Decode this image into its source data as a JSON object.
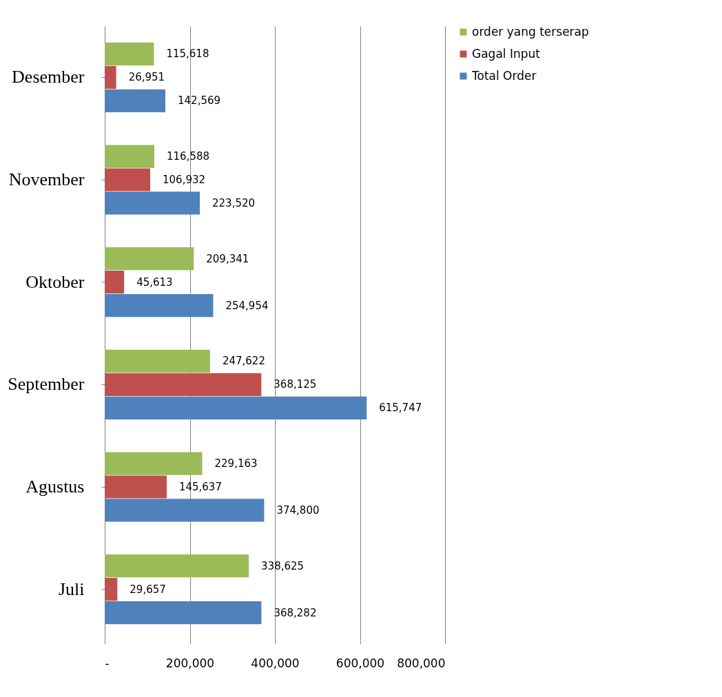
{
  "chart_data": {
    "type": "bar",
    "orientation": "horizontal",
    "categories": [
      "Desember",
      "November",
      "Oktober",
      "September",
      "Agustus",
      "Juli"
    ],
    "series": [
      {
        "name": "order yang terserap",
        "color": "#9bbb59",
        "values": [
          115618,
          116588,
          209341,
          247622,
          229163,
          338625
        ],
        "value_labels": [
          "115,618",
          "116,588",
          "209,341",
          "247,622",
          "229,163",
          "338,625"
        ]
      },
      {
        "name": "Gagal Input",
        "color": "#c0504d",
        "values": [
          26951,
          106932,
          45613,
          368125,
          145637,
          29657
        ],
        "value_labels": [
          "26,951",
          "106,932",
          "45,613",
          "368,125",
          "145,637",
          "29,657"
        ]
      },
      {
        "name": "Total Order",
        "color": "#4f81bd",
        "values": [
          142569,
          223520,
          254954,
          615747,
          374800,
          368282
        ],
        "value_labels": [
          "142,569",
          "223,520",
          "254,954",
          "615,747",
          "374,800",
          "368,282"
        ]
      }
    ],
    "xlim": [
      0,
      800000
    ],
    "xticks": [
      {
        "value": 0,
        "label": "-"
      },
      {
        "value": 200000,
        "label": "200,000"
      },
      {
        "value": 400000,
        "label": "400,000"
      },
      {
        "value": 600000,
        "label": "600,000"
      },
      {
        "value": 800000,
        "label": "800,000"
      }
    ],
    "grid": "x",
    "legend": "right"
  }
}
